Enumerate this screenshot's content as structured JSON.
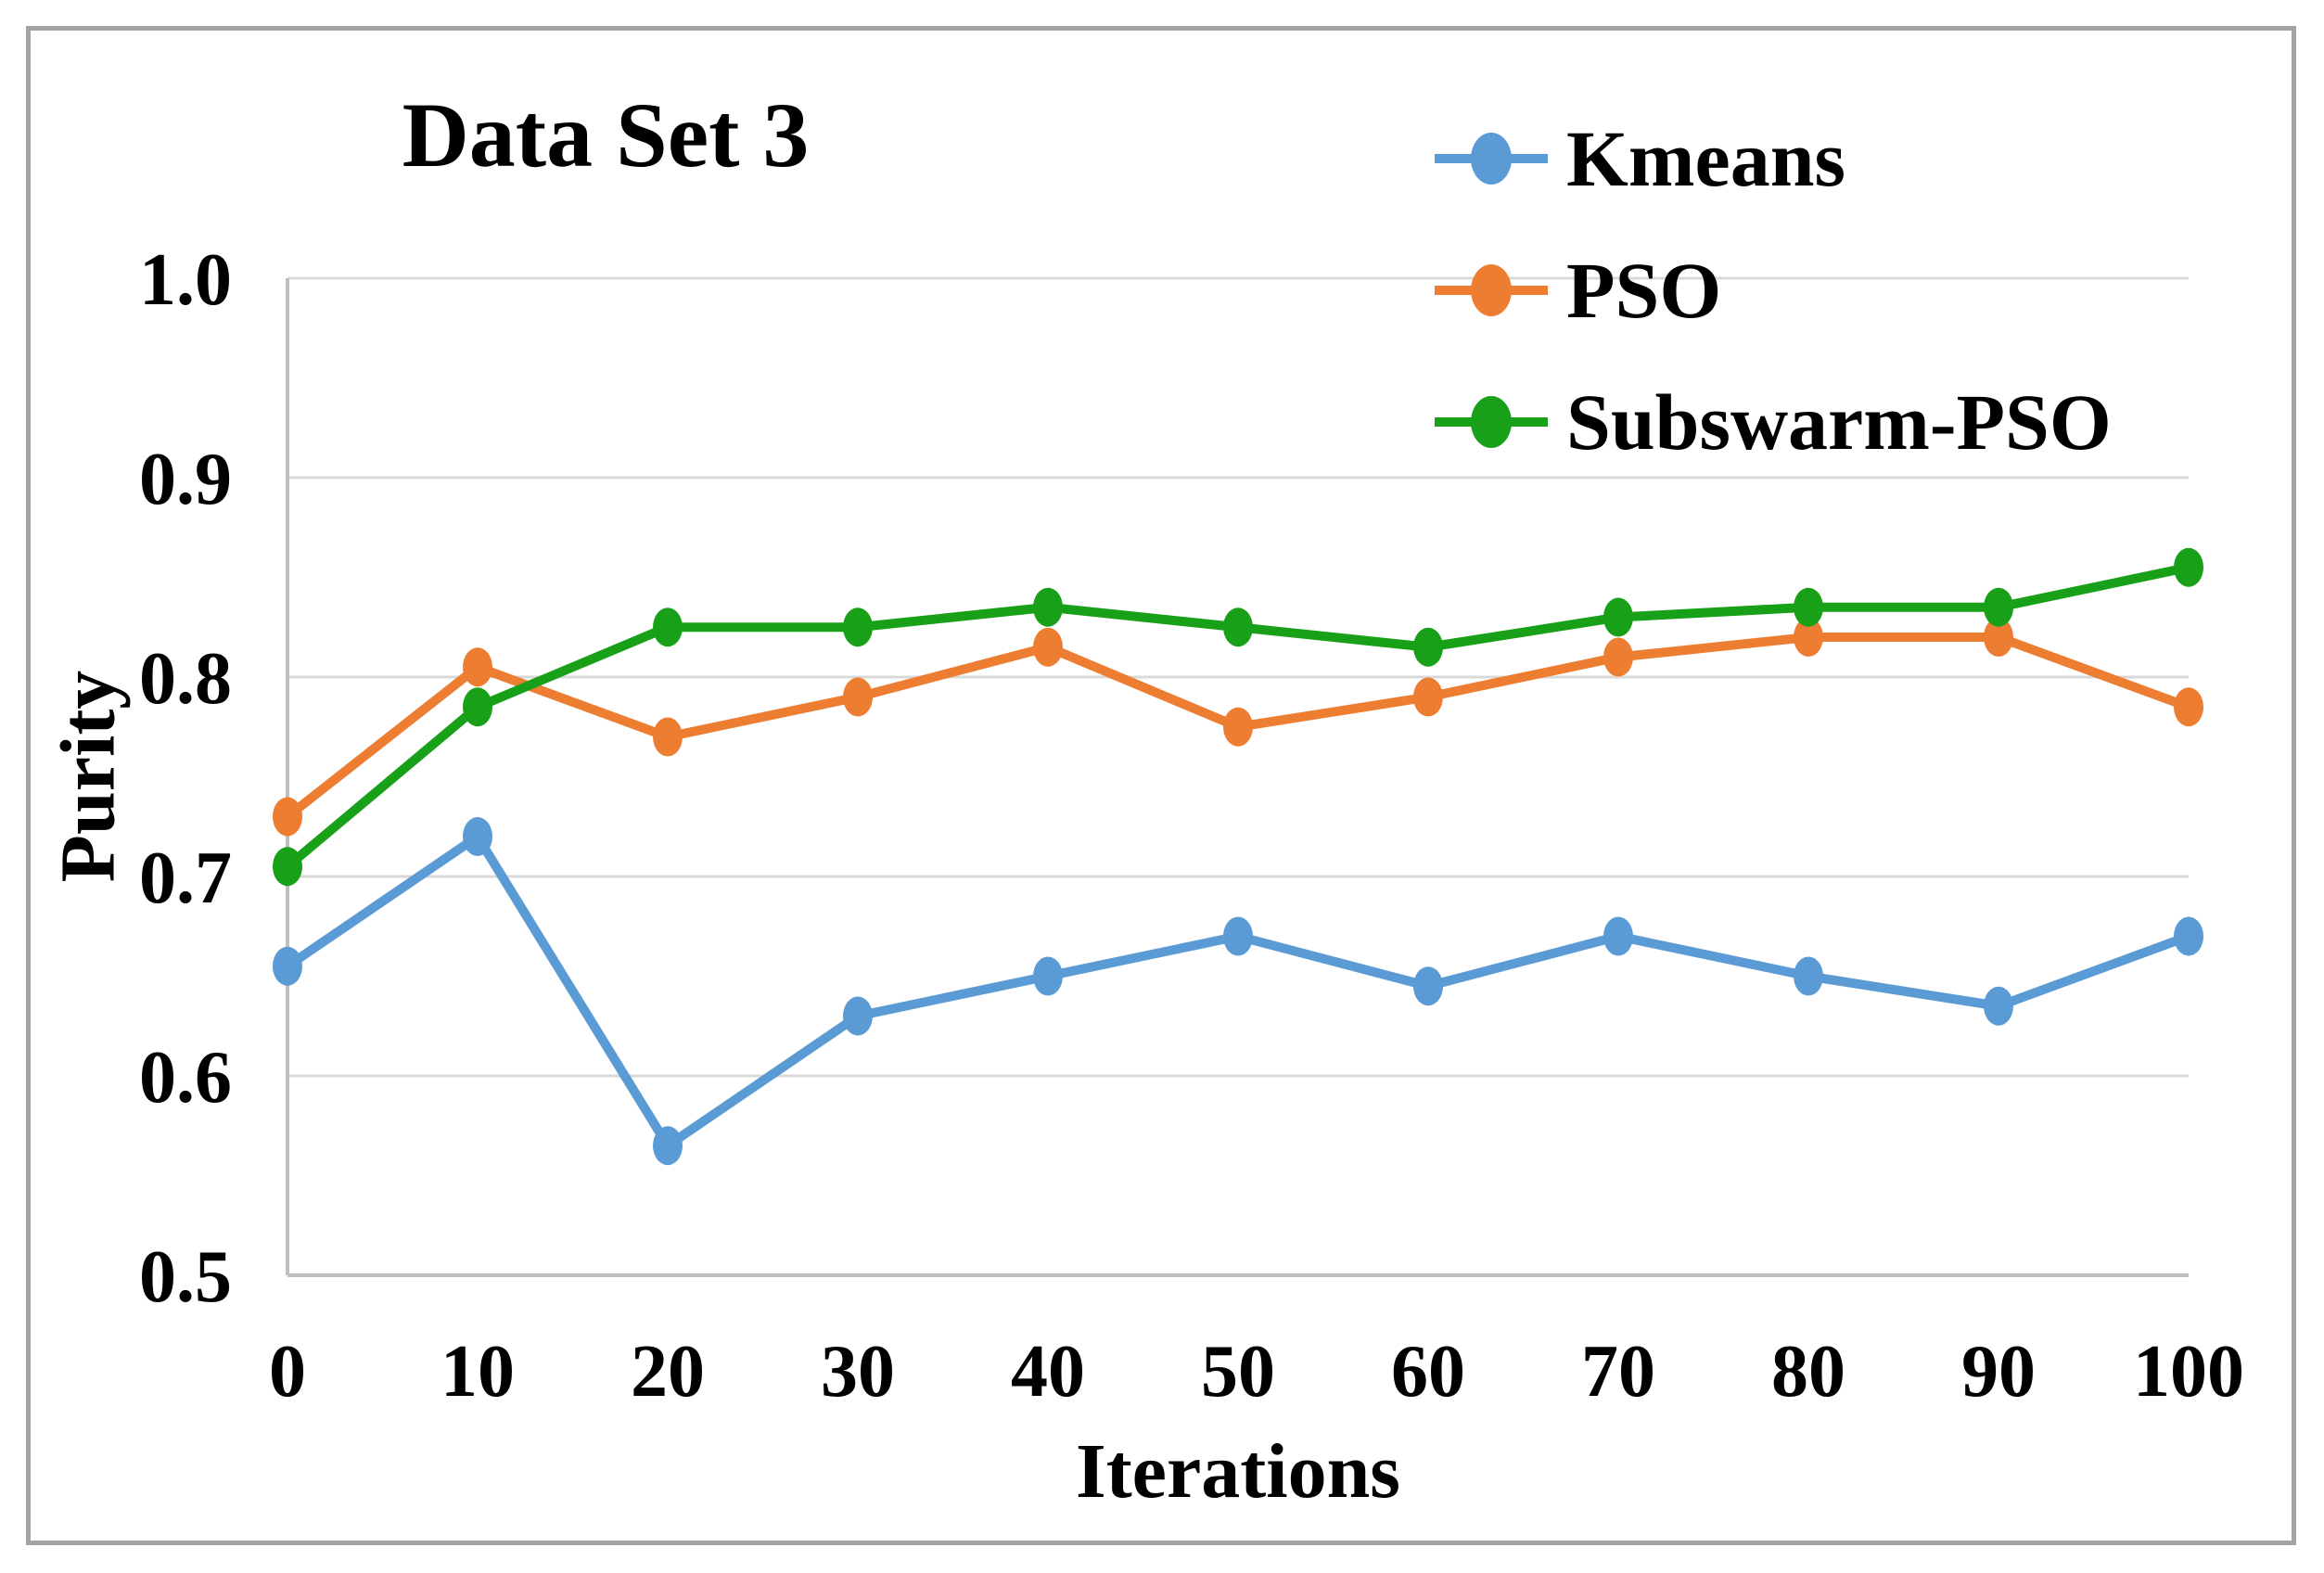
{
  "figure": {
    "background": "#FFFFFF",
    "border_color": "#A4A4A4",
    "gridline_color": "#D9D9D9",
    "axis_line_color": "#BFBFBF"
  },
  "chart_data": {
    "type": "line",
    "title": "Data Set 3",
    "xlabel": "Iterations",
    "ylabel": "Purity",
    "x": [
      0,
      10,
      20,
      30,
      40,
      50,
      60,
      70,
      80,
      90,
      100
    ],
    "x_tick_labels": [
      "0",
      "10",
      "20",
      "30",
      "40",
      "50",
      "60",
      "70",
      "80",
      "90",
      "100"
    ],
    "ylim": [
      0.5,
      1.0
    ],
    "y_tick_labels": [
      "1.0",
      "0.9",
      "0.8",
      "0.7",
      "0.6",
      "0.5"
    ],
    "grid": "horizontal",
    "legend_position": "top-right",
    "series": [
      {
        "name": "Kmeans",
        "color": "#5B9BD5",
        "values": [
          0.655,
          0.72,
          0.565,
          0.63,
          0.65,
          0.67,
          0.645,
          0.67,
          0.65,
          0.635,
          0.67
        ]
      },
      {
        "name": "PSO",
        "color": "#ED7D31",
        "values": [
          0.73,
          0.805,
          0.77,
          0.79,
          0.815,
          0.775,
          0.79,
          0.81,
          0.82,
          0.82,
          0.785
        ]
      },
      {
        "name": "Subswarm-PSO",
        "color": "#18A018",
        "values": [
          0.705,
          0.785,
          0.825,
          0.825,
          0.835,
          0.825,
          0.815,
          0.83,
          0.835,
          0.835,
          0.855
        ]
      }
    ]
  }
}
